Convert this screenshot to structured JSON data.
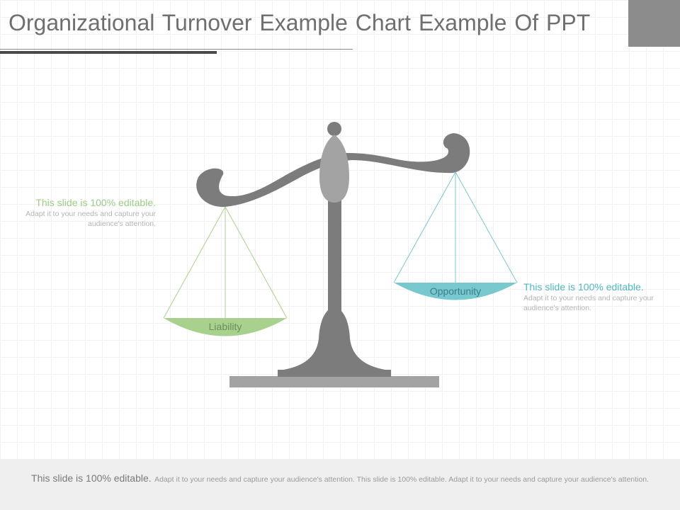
{
  "slide": {
    "title": "Organizational Turnover Example Chart Example Of PPT"
  },
  "pans": {
    "left_label": "Liability",
    "right_label": "Opportunity"
  },
  "notes": {
    "left": {
      "heading": "This slide is 100% editable.",
      "body": "Adapt it to your needs and capture your audience's attention."
    },
    "right": {
      "heading": "This slide is 100% editable.",
      "body": "Adapt it to your needs and capture your audience's attention."
    }
  },
  "footer": {
    "heading": "This slide is 100% editable.",
    "body": "Adapt it to your needs and capture your audience's attention. This slide is 100% editable. Adapt it to your needs and capture your audience's attention."
  },
  "colors": {
    "liability": "#a9d18e",
    "opportunity": "#77c8cf",
    "scale": "#7c7c7c"
  }
}
